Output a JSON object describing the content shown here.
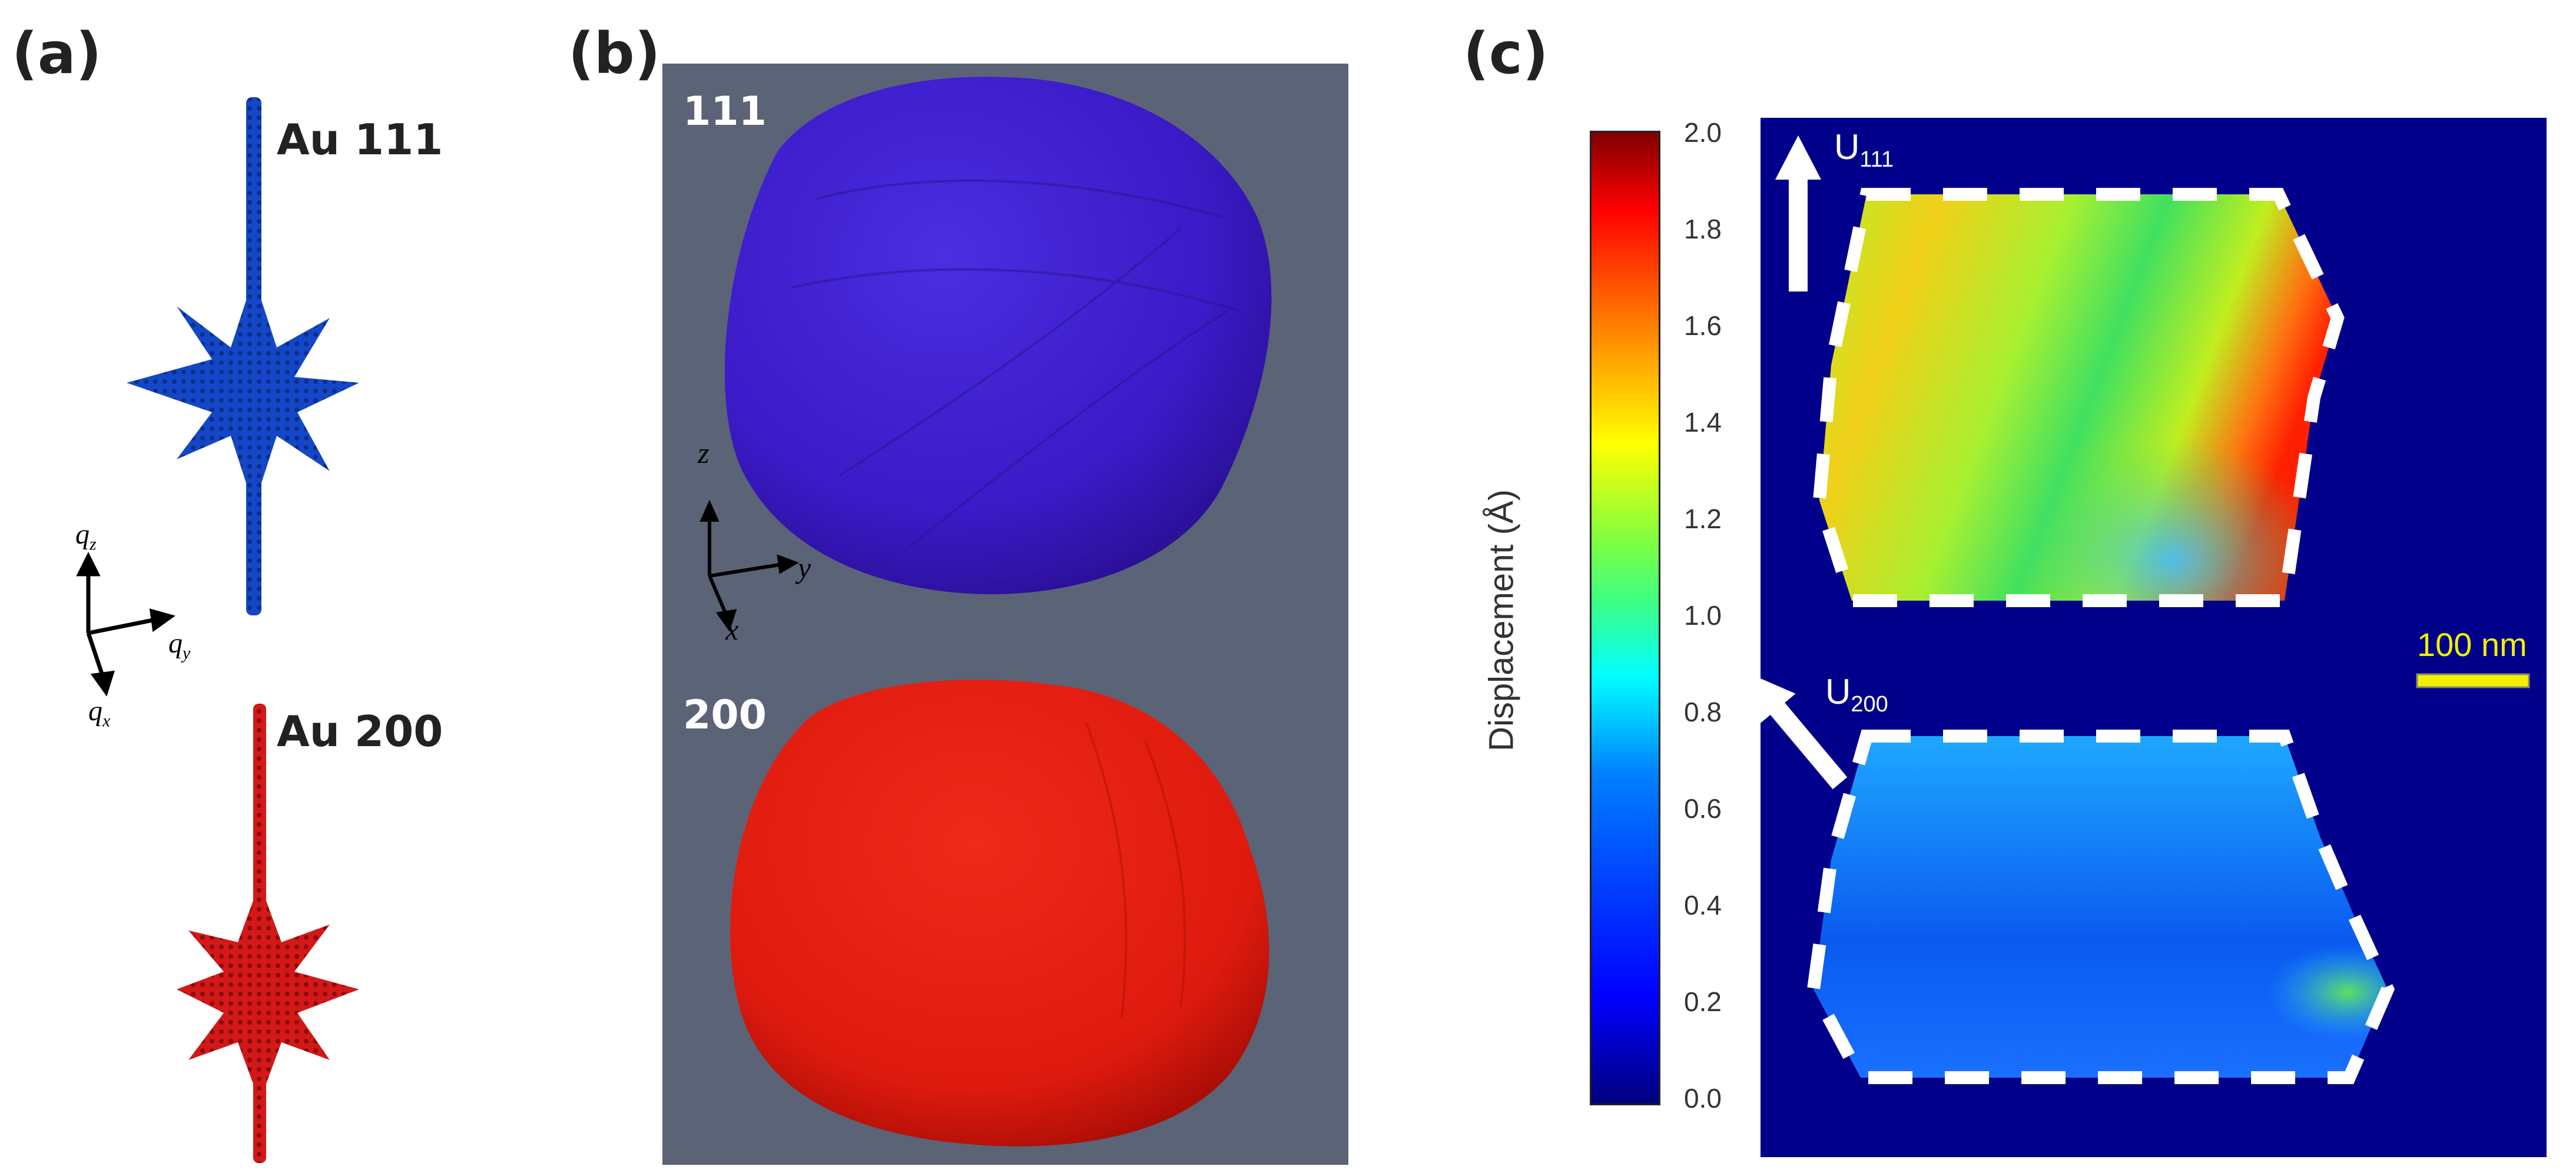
{
  "panels": {
    "a": {
      "label": "(a)",
      "peak_111_label": "Au 111",
      "peak_200_label": "Au 200",
      "axes": {
        "z": "q",
        "z_sub": "z",
        "y": "q",
        "y_sub": "y",
        "x": "q",
        "x_sub": "x"
      },
      "colors": {
        "peak_111": "#1447c8",
        "peak_200": "#d41818"
      }
    },
    "b": {
      "label": "(b)",
      "top_label": "111",
      "bottom_label": "200",
      "axes": {
        "z": "z",
        "y": "y",
        "x": "x"
      },
      "colors": {
        "background": "#5b6377",
        "crystal_111": "#3b1ac7",
        "crystal_200": "#e01a0f"
      }
    },
    "c": {
      "label": "(c)",
      "colorbar": {
        "title": "Displacement (Å)",
        "min": 0.0,
        "max": 2.0,
        "ticks": [
          "0.0",
          "0.2",
          "0.4",
          "0.6",
          "0.8",
          "1.0",
          "1.2",
          "1.4",
          "1.6",
          "1.8",
          "2.0"
        ]
      },
      "top_vector": "U",
      "top_vector_sub": "111",
      "bottom_vector": "U",
      "bottom_vector_sub": "200",
      "scale_bar": "100 nm",
      "colors": {
        "background": "#00008b",
        "scale_bar": "#f0f000"
      }
    }
  }
}
